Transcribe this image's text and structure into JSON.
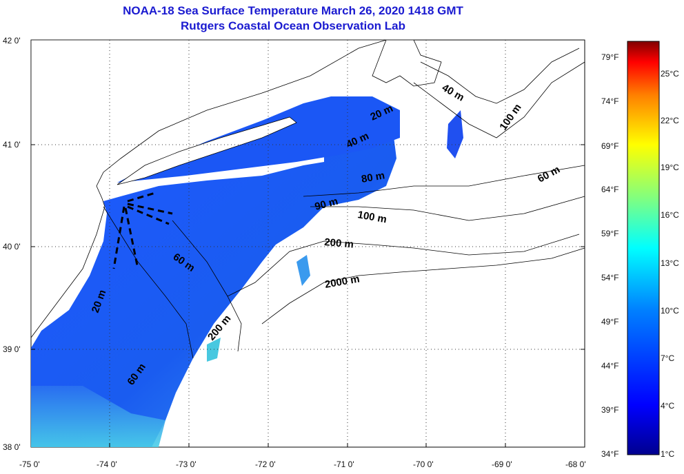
{
  "title": {
    "line1": "NOAA-18 Sea Surface Temperature March 26, 2020 1418 GMT",
    "line2": "Rutgers Coastal Ocean Observation Lab"
  },
  "axes": {
    "lat_labels": [
      "42 0'",
      "41 0'",
      "40 0'",
      "39 0'",
      "38 0'"
    ],
    "lon_labels": [
      "-75 0'",
      "-74 0'",
      "-73 0'",
      "-72 0'",
      "-71 0'",
      "-70 0'",
      "-69 0'",
      "-68 0'"
    ],
    "lat_range": [
      38,
      42
    ],
    "lon_range": [
      -75,
      -68
    ],
    "grid": "dotted"
  },
  "contours": [
    "20 m",
    "40 m",
    "60 m",
    "80 m",
    "90 m",
    "100 m",
    "200 m",
    "2000 m",
    "20 m",
    "60 m",
    "200 m",
    "40 m",
    "100 m",
    "60 m"
  ],
  "colorbar": {
    "fahrenheit": [
      "79°F",
      "74°F",
      "69°F",
      "64°F",
      "59°F",
      "54°F",
      "49°F",
      "44°F",
      "39°F",
      "34°F"
    ],
    "celsius": [
      "25°C",
      "22°C",
      "19°C",
      "16°C",
      "13°C",
      "10°C",
      "7°C",
      "4°C",
      "1°C"
    ],
    "colors": [
      "#00008f",
      "#0000ff",
      "#0080ff",
      "#00ffff",
      "#80ff80",
      "#ffff00",
      "#ff8000",
      "#ff0000",
      "#800000"
    ]
  }
}
